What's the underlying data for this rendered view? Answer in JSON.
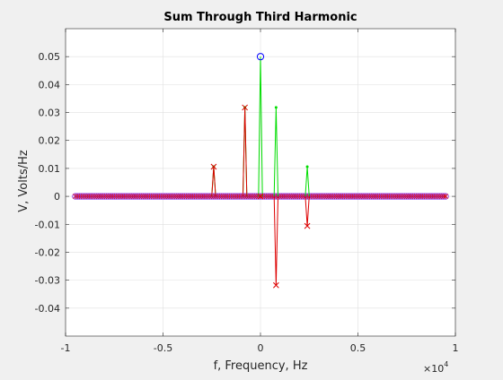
{
  "chart_data": {
    "type": "line",
    "title": "Sum Through Third Harmonic",
    "xlabel": "f, Frequency, Hz",
    "ylabel": "V, Volts/Hz",
    "x_exponent_label": "×10",
    "x_exponent_power": "4",
    "xlim": [
      -10000,
      10000
    ],
    "ylim": [
      -0.05,
      0.06
    ],
    "xticks": [
      -10000,
      -5000,
      0,
      5000,
      10000
    ],
    "xtick_labels": [
      "-1",
      "-0.5",
      "0",
      "0.5",
      "1"
    ],
    "yticks": [
      -0.04,
      -0.03,
      -0.02,
      -0.01,
      0,
      0.01,
      0.02,
      0.03,
      0.04,
      0.05
    ],
    "ytick_labels": [
      "-0.04",
      "-0.03",
      "-0.02",
      "-0.01",
      "0",
      "0.01",
      "0.02",
      "0.03",
      "0.04",
      "0.05"
    ],
    "grid": true,
    "baseline_x_range": [
      -9500,
      9500
    ],
    "baseline_spacing": 100,
    "series": [
      {
        "style": "solid-line-with-circles",
        "color": "#00dd00",
        "marker_color": "#0000ff",
        "x": [
          -2400,
          -800,
          0,
          800,
          2400
        ],
        "values": [
          0.0106,
          0.0318,
          0.05,
          0.0318,
          0.0106
        ]
      },
      {
        "style": "solid-line-with-crosses",
        "color": "#dd0000",
        "x": [
          -2400,
          -800,
          0,
          800,
          2400
        ],
        "values": [
          0.0106,
          0.0318,
          0,
          -0.0318,
          -0.0106
        ]
      }
    ],
    "colors": {
      "background": "#f0f0f0",
      "axes_background": "#ffffff",
      "axis": "#262626",
      "grid": "#dfdfdf",
      "baseline_markers": "#8a2be2"
    }
  }
}
